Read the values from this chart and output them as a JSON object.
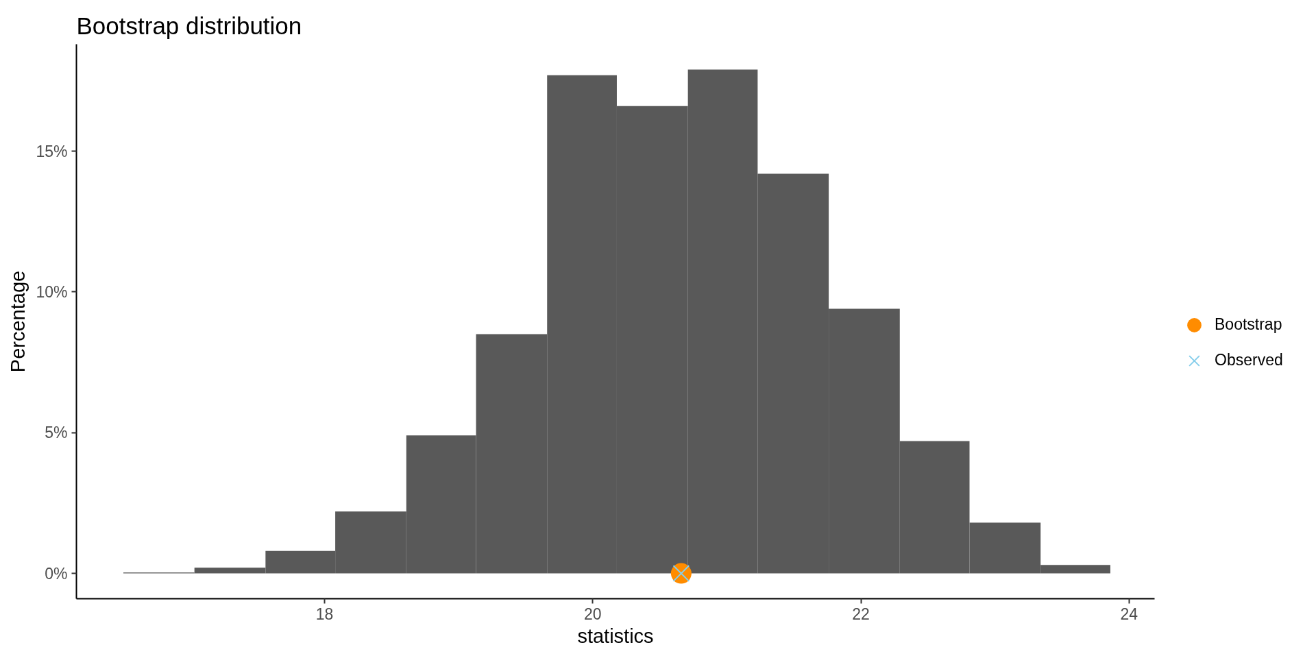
{
  "chart_data": {
    "type": "histogram",
    "title": "Bootstrap distribution",
    "xlabel": "statistics",
    "ylabel": "Percentage",
    "bins": [
      16.5,
      17.03,
      17.56,
      18.08,
      18.61,
      19.13,
      19.66,
      20.18,
      20.71,
      21.23,
      21.76,
      22.29,
      22.81,
      23.34,
      23.86
    ],
    "values": [
      0.03,
      0.2,
      0.8,
      2.2,
      4.9,
      8.5,
      17.7,
      16.6,
      17.9,
      14.2,
      9.4,
      4.7,
      1.8,
      0.3
    ],
    "color": "#595959",
    "series": [
      {
        "type": "scatter",
        "name": "Bootstrap",
        "x": [
          20.66
        ],
        "values": [
          0
        ],
        "color": "#ff8c00",
        "marker": "circle"
      },
      {
        "type": "scatter",
        "name": "Observed",
        "x": [
          20.66
        ],
        "values": [
          0
        ],
        "color": "#87ceeb",
        "marker": "cross"
      }
    ],
    "xlim": [
      16.15,
      24.19
    ],
    "ylim": [
      -0.9,
      18.8
    ],
    "xticks": [
      18,
      20,
      22,
      24
    ],
    "yticks": [
      {
        "value": 0,
        "label": "0%"
      },
      {
        "value": 5,
        "label": "5%"
      },
      {
        "value": 10,
        "label": "10%"
      },
      {
        "value": 15,
        "label": "15%"
      }
    ],
    "legend": "right"
  }
}
